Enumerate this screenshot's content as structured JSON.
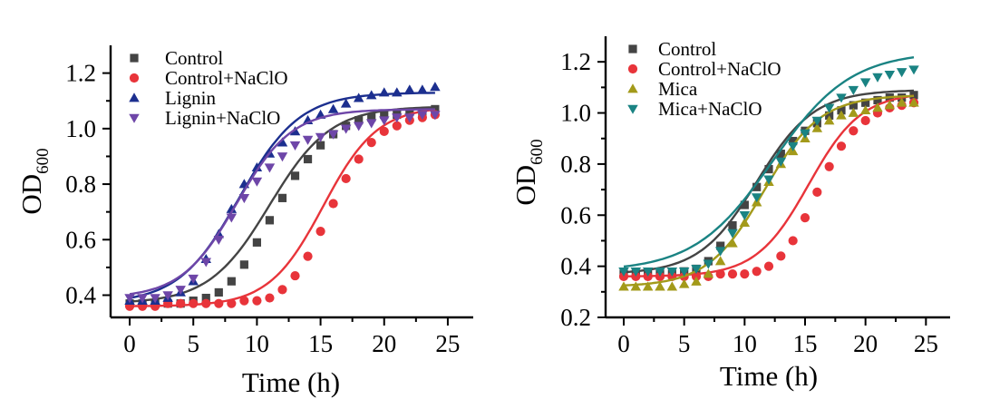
{
  "chart_data": [
    {
      "type": "scatter",
      "xlabel": "Time (h)",
      "ylabel": "OD",
      "ylabel_sub": "600",
      "xlim": [
        -1.5,
        27
      ],
      "ylim": [
        0.32,
        1.3
      ],
      "xticks": [
        0,
        5,
        10,
        15,
        20,
        25
      ],
      "yticks": [
        0.4,
        0.6,
        0.8,
        1.0,
        1.2
      ],
      "ytick_labels": [
        "0.4",
        "0.6",
        "0.8",
        "1.0",
        "1.2"
      ],
      "legend_position": "top-left",
      "series": [
        {
          "name": "Control",
          "marker": "square",
          "color": "#444444",
          "fit": [
            0.37,
            1.08,
            11.0,
            0.42
          ],
          "x": [
            0,
            1,
            2,
            3,
            4,
            5,
            6,
            7,
            8,
            9,
            10,
            11,
            12,
            13,
            14,
            15,
            16,
            17,
            18,
            19,
            20,
            21,
            22,
            23,
            24
          ],
          "y": [
            0.37,
            0.37,
            0.37,
            0.37,
            0.37,
            0.38,
            0.39,
            0.41,
            0.45,
            0.51,
            0.59,
            0.67,
            0.75,
            0.83,
            0.89,
            0.94,
            0.98,
            1.01,
            1.03,
            1.04,
            1.05,
            1.05,
            1.06,
            1.06,
            1.07
          ]
        },
        {
          "name": "Control+NaClO",
          "marker": "circle",
          "color": "#e8343a",
          "fit": [
            0.36,
            1.08,
            15.2,
            0.47
          ],
          "x": [
            0,
            1,
            2,
            3,
            4,
            5,
            6,
            7,
            8,
            9,
            10,
            11,
            12,
            13,
            14,
            15,
            16,
            17,
            18,
            19,
            20,
            21,
            22,
            23,
            24
          ],
          "y": [
            0.36,
            0.36,
            0.36,
            0.37,
            0.37,
            0.37,
            0.37,
            0.37,
            0.37,
            0.38,
            0.38,
            0.39,
            0.42,
            0.47,
            0.54,
            0.63,
            0.73,
            0.82,
            0.89,
            0.95,
            0.99,
            1.01,
            1.03,
            1.04,
            1.05
          ]
        },
        {
          "name": "Lignin",
          "marker": "triangle-up",
          "color": "#1c2f8f",
          "fit": [
            0.37,
            1.13,
            8.6,
            0.42
          ],
          "x": [
            0,
            1,
            2,
            3,
            4,
            5,
            6,
            7,
            8,
            9,
            10,
            11,
            12,
            13,
            14,
            15,
            16,
            17,
            18,
            19,
            20,
            21,
            22,
            23,
            24
          ],
          "y": [
            0.38,
            0.38,
            0.38,
            0.39,
            0.41,
            0.45,
            0.53,
            0.62,
            0.71,
            0.8,
            0.86,
            0.91,
            0.95,
            0.99,
            1.03,
            1.05,
            1.07,
            1.09,
            1.11,
            1.12,
            1.13,
            1.13,
            1.14,
            1.14,
            1.15
          ]
        },
        {
          "name": "Lignin+NaClO",
          "marker": "triangle-down",
          "color": "#6e46a8",
          "fit": [
            0.39,
            1.07,
            8.4,
            0.46
          ],
          "x": [
            0,
            1,
            2,
            3,
            4,
            5,
            6,
            7,
            8,
            9,
            10,
            11,
            12,
            13,
            14,
            15,
            16,
            17,
            18,
            19,
            20,
            21,
            22,
            23,
            24
          ],
          "y": [
            0.39,
            0.39,
            0.39,
            0.4,
            0.42,
            0.46,
            0.52,
            0.6,
            0.68,
            0.75,
            0.81,
            0.86,
            0.9,
            0.94,
            0.96,
            0.97,
            0.98,
            1.0,
            1.01,
            1.02,
            1.03,
            1.04,
            1.04,
            1.05,
            1.05
          ]
        }
      ]
    },
    {
      "type": "scatter",
      "xlabel": "Time (h)",
      "ylabel": "OD",
      "ylabel_sub": "600",
      "xlim": [
        -1.5,
        27
      ],
      "ylim": [
        0.2,
        1.3
      ],
      "xticks": [
        0,
        5,
        10,
        15,
        20,
        25
      ],
      "yticks": [
        0.2,
        0.4,
        0.6,
        0.8,
        1.0,
        1.2
      ],
      "ytick_labels": [
        "0.2",
        "0.4",
        "0.6",
        "0.8",
        "1.0",
        "1.2"
      ],
      "legend_position": "top-left",
      "series": [
        {
          "name": "Control",
          "marker": "square",
          "color": "#444444",
          "fit": [
            0.37,
            1.09,
            11.0,
            0.42
          ],
          "x": [
            0,
            1,
            2,
            3,
            4,
            5,
            6,
            7,
            8,
            9,
            10,
            11,
            12,
            13,
            14,
            15,
            16,
            17,
            18,
            19,
            20,
            21,
            22,
            23,
            24
          ],
          "y": [
            0.37,
            0.37,
            0.37,
            0.37,
            0.37,
            0.38,
            0.39,
            0.42,
            0.48,
            0.56,
            0.64,
            0.71,
            0.78,
            0.84,
            0.89,
            0.93,
            0.96,
            0.99,
            1.01,
            1.03,
            1.04,
            1.05,
            1.06,
            1.06,
            1.07
          ]
        },
        {
          "name": "Control+NaClO",
          "marker": "circle",
          "color": "#e8343a",
          "fit": [
            0.36,
            1.08,
            15.3,
            0.46
          ],
          "x": [
            0,
            1,
            2,
            3,
            4,
            5,
            6,
            7,
            8,
            9,
            10,
            11,
            12,
            13,
            14,
            15,
            16,
            17,
            18,
            19,
            20,
            21,
            22,
            23,
            24
          ],
          "y": [
            0.36,
            0.36,
            0.36,
            0.36,
            0.36,
            0.36,
            0.36,
            0.36,
            0.37,
            0.37,
            0.37,
            0.38,
            0.4,
            0.44,
            0.5,
            0.59,
            0.69,
            0.79,
            0.87,
            0.93,
            0.97,
            1.0,
            1.02,
            1.03,
            1.04
          ]
        },
        {
          "name": "Mica",
          "marker": "triangle-up",
          "color": "#a39a1a",
          "fit": [
            0.32,
            1.07,
            11.6,
            0.43
          ],
          "x": [
            0,
            1,
            2,
            3,
            4,
            5,
            6,
            7,
            8,
            9,
            10,
            11,
            12,
            13,
            14,
            15,
            16,
            17,
            18,
            19,
            20,
            21,
            22,
            23,
            24
          ],
          "y": [
            0.32,
            0.32,
            0.32,
            0.32,
            0.32,
            0.33,
            0.34,
            0.37,
            0.42,
            0.49,
            0.57,
            0.65,
            0.73,
            0.8,
            0.85,
            0.9,
            0.94,
            0.97,
            0.99,
            1.0,
            1.01,
            1.02,
            1.03,
            1.04,
            1.04
          ]
        },
        {
          "name": "Mica+NaClO",
          "marker": "triangle-down",
          "color": "#1a8383",
          "fit": [
            0.38,
            1.24,
            12.3,
            0.31
          ],
          "x": [
            0,
            1,
            2,
            3,
            4,
            5,
            6,
            7,
            8,
            9,
            10,
            11,
            12,
            13,
            14,
            15,
            16,
            17,
            18,
            19,
            20,
            21,
            22,
            23,
            24
          ],
          "y": [
            0.38,
            0.38,
            0.38,
            0.38,
            0.38,
            0.38,
            0.39,
            0.41,
            0.46,
            0.53,
            0.6,
            0.67,
            0.74,
            0.81,
            0.87,
            0.92,
            0.97,
            1.02,
            1.06,
            1.09,
            1.12,
            1.14,
            1.15,
            1.16,
            1.17
          ]
        }
      ]
    }
  ]
}
